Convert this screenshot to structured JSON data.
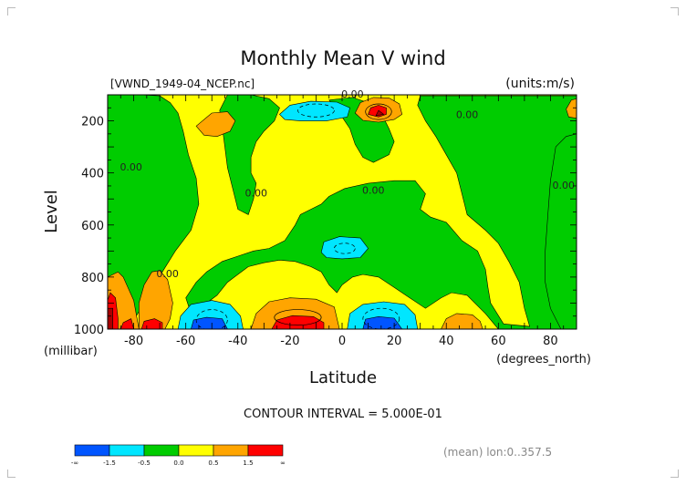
{
  "chart_data": {
    "type": "contour",
    "title": "Monthly Mean V wind",
    "file_label": "[VWND_1949-04_NCEP.nc]",
    "units_label": "(units:m/s)",
    "xlabel": "Latitude",
    "x_unit": "(degrees_north)",
    "ylabel": "Level",
    "y_unit": "(millibar)",
    "xlim": [
      -90,
      90
    ],
    "ylim": [
      1000,
      100
    ],
    "x_ticks": [
      -80,
      -60,
      -40,
      -20,
      0,
      20,
      40,
      60,
      80
    ],
    "y_ticks": [
      200,
      400,
      600,
      800,
      1000
    ],
    "contour_interval_text": "CONTOUR INTERVAL = 5.000E-01",
    "contour_interval": 0.5,
    "contour_labels": [
      {
        "text": "0.00",
        "x": 4,
        "y": 110
      },
      {
        "text": "0.00",
        "x": 48,
        "y": 190
      },
      {
        "text": "0.00",
        "x": -81,
        "y": 390
      },
      {
        "text": "0.00",
        "x": -33,
        "y": 490
      },
      {
        "text": "0.00",
        "x": 12,
        "y": 480
      },
      {
        "text": "0.00",
        "x": 85,
        "y": 460
      },
      {
        "text": "0.00",
        "x": -67,
        "y": 800
      }
    ],
    "colorbar": {
      "levels": [
        "-∞",
        "-1.5",
        "-0.5",
        "0.0",
        "0.5",
        "1.5",
        "∞"
      ],
      "colors": [
        "#0055ff",
        "#00e6ff",
        "#00cc00",
        "#ffff00",
        "#ffa500",
        "#ff0000"
      ]
    },
    "region_colors": {
      "strong_negative": "#0055ff",
      "negative": "#00e6ff",
      "weak_negative": "#00cc00",
      "weak_positive": "#ffff00",
      "positive": "#ffa500",
      "strong_positive": "#ff0000",
      "max": "#aa0000",
      "min": "#0000cc"
    },
    "footer_note": "(mean) lon:0..357.5"
  }
}
